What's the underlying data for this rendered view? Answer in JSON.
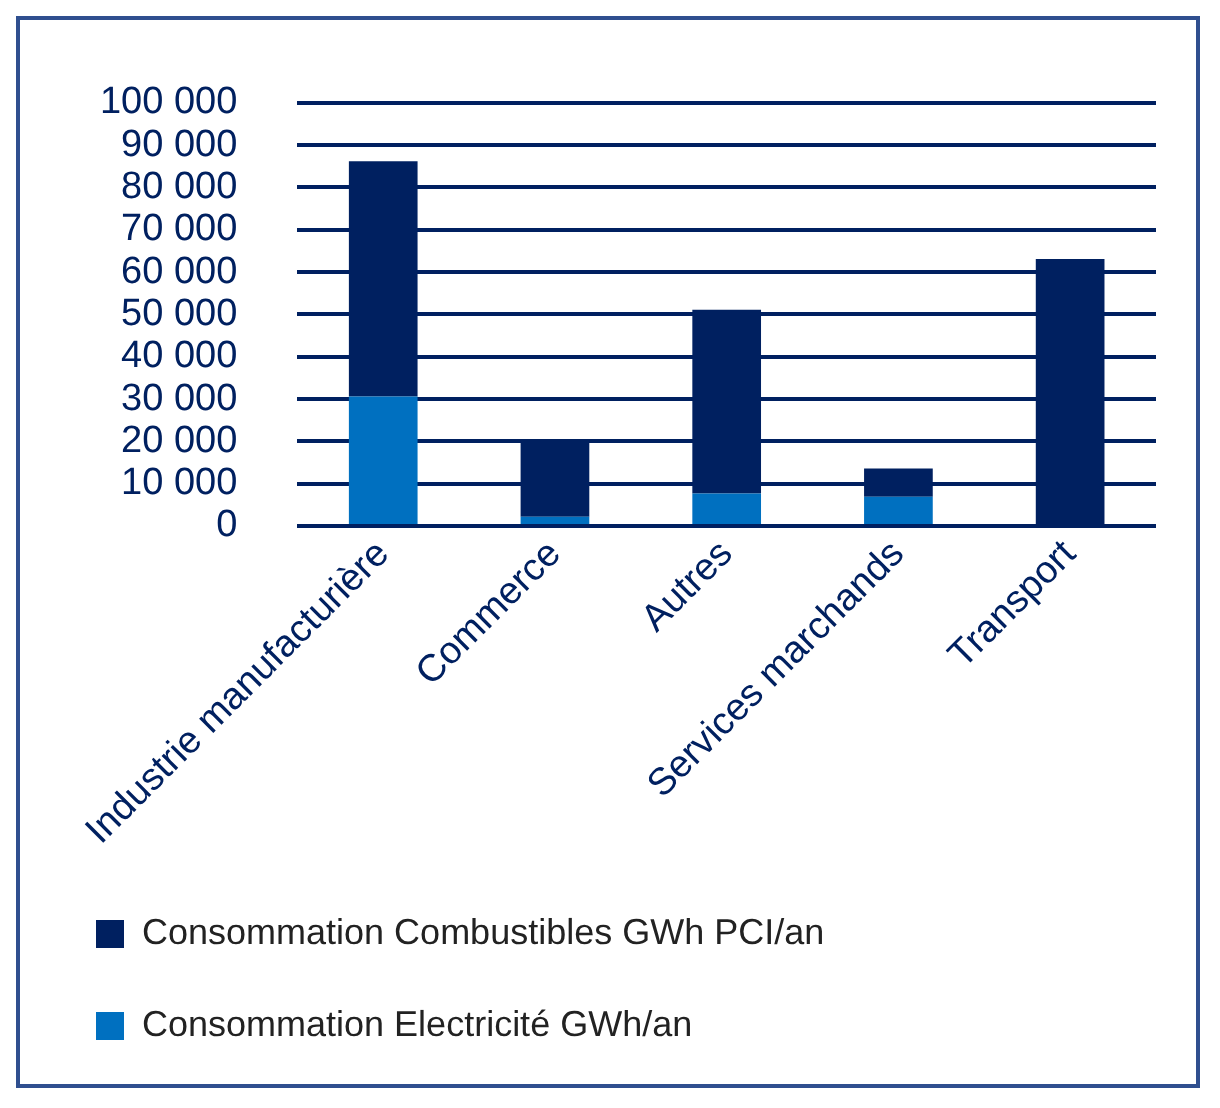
{
  "chart_data": {
    "type": "bar",
    "stacked": true,
    "categories": [
      "Industrie manufacturière",
      "Commerce",
      "Autres",
      "Services marchands",
      "Transport"
    ],
    "series": [
      {
        "name": "Consommation Electricité GWh/an",
        "color": "#0070c0",
        "values": [
          30600,
          2200,
          7700,
          6900,
          null
        ]
      },
      {
        "name": "Consommation Combustibles GWh PCI/an",
        "color": "#002060",
        "values": [
          55600,
          17900,
          43400,
          6700,
          63100
        ]
      }
    ],
    "ylim": [
      0,
      100000
    ],
    "yticks": [
      {
        "value": 0,
        "label": "0"
      },
      {
        "value": 10000,
        "label": "10 000"
      },
      {
        "value": 20000,
        "label": "20 000"
      },
      {
        "value": 30000,
        "label": "30 000"
      },
      {
        "value": 40000,
        "label": "40 000"
      },
      {
        "value": 50000,
        "label": "50 000"
      },
      {
        "value": 60000,
        "label": "60 000"
      },
      {
        "value": 70000,
        "label": "70 000"
      },
      {
        "value": 80000,
        "label": "80 000"
      },
      {
        "value": 90000,
        "label": "90 000"
      },
      {
        "value": 100000,
        "label": "100 000"
      }
    ],
    "grid": "y",
    "legend": "bottom"
  }
}
